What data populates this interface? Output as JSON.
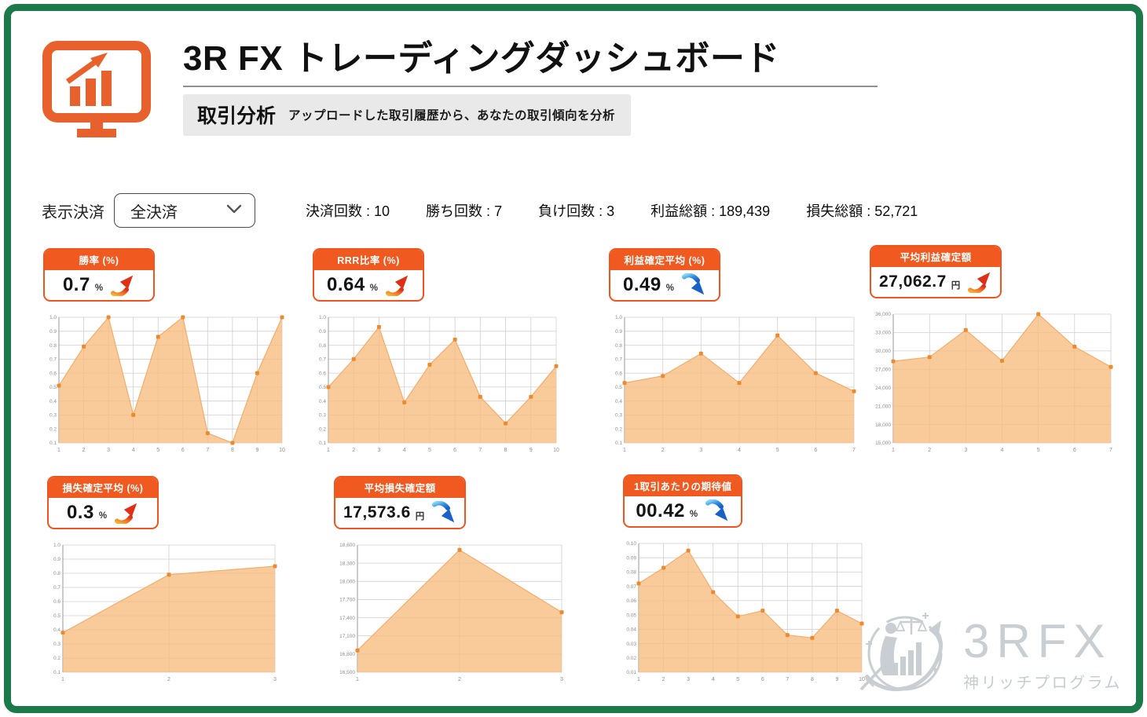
{
  "header": {
    "title": "3R FX トレーディングダッシュボード",
    "section_label": "取引分析",
    "section_desc": "アップロードした取引履歴から、あなたの取引傾向を分析"
  },
  "filter": {
    "label": "表示決済",
    "selected": "全決済"
  },
  "stats_separator": " : ",
  "stats": [
    {
      "label": "決済回数",
      "value": "10"
    },
    {
      "label": "勝ち回数",
      "value": "7"
    },
    {
      "label": "負け回数",
      "value": "3"
    },
    {
      "label": "利益総額",
      "value": "189,439"
    },
    {
      "label": "損失総額",
      "value": "52,721"
    }
  ],
  "colors": {
    "frame_green": "#1b7a4a",
    "accent_orange": "#f0591f",
    "area_fill": "#f7bd81",
    "marker_orange": "#ec8a30",
    "arrow_up_gradient": [
      "#f9b233",
      "#e02f17"
    ],
    "arrow_down_gradient": [
      "#86d7f3",
      "#1861c9"
    ],
    "watermark_gray": "#c9ced3"
  },
  "watermark": {
    "brand": "3RFX",
    "subtitle": "神リッチプログラム"
  },
  "chart_data": [
    {
      "type": "area",
      "kpi": {
        "label": "勝率 (%)",
        "value": "0.7",
        "unit": "%",
        "trend": "up"
      },
      "categories": [
        "1",
        "2",
        "3",
        "4",
        "5",
        "6",
        "7",
        "8",
        "9",
        "10"
      ],
      "values": [
        0.51,
        0.79,
        1.0,
        0.3,
        0.86,
        1.0,
        0.17,
        0.1,
        0.6,
        1.0
      ],
      "ylim": [
        0.1,
        1.0
      ],
      "yticks": [
        1.0,
        0.9,
        0.8,
        0.7,
        0.6,
        0.5,
        0.4,
        0.3,
        0.2,
        0.1
      ],
      "ytick_labels": [
        "1.0",
        "0.9",
        "0.8",
        "0.7",
        "0.6",
        "0.5",
        "0.4",
        "0.3",
        "0.2",
        "0.1"
      ],
      "xlabel": "",
      "ylabel": "",
      "grid": true
    },
    {
      "type": "area",
      "kpi": {
        "label": "RRR比率 (%)",
        "value": "0.64",
        "unit": "%",
        "trend": "up"
      },
      "categories": [
        "1",
        "2",
        "3",
        "4",
        "5",
        "6",
        "7",
        "8",
        "9",
        "10"
      ],
      "values": [
        0.5,
        0.7,
        0.93,
        0.39,
        0.66,
        0.84,
        0.43,
        0.24,
        0.43,
        0.65
      ],
      "ylim": [
        0.1,
        1.0
      ],
      "yticks": [
        1.0,
        0.9,
        0.8,
        0.7,
        0.6,
        0.5,
        0.4,
        0.3,
        0.2,
        0.1
      ],
      "ytick_labels": [
        "1.0",
        "0.9",
        "0.8",
        "0.7",
        "0.6",
        "0.5",
        "0.4",
        "0.3",
        "0.2",
        "0.1"
      ],
      "xlabel": "",
      "ylabel": "",
      "grid": true
    },
    {
      "type": "area",
      "kpi": {
        "label": "利益確定平均 (%)",
        "value": "0.49",
        "unit": "%",
        "trend": "down"
      },
      "categories": [
        "1",
        "2",
        "3",
        "4",
        "5",
        "6",
        "7"
      ],
      "values": [
        0.53,
        0.58,
        0.74,
        0.53,
        0.87,
        0.6,
        0.47
      ],
      "ylim": [
        0.1,
        1.0
      ],
      "yticks": [
        1.0,
        0.9,
        0.8,
        0.7,
        0.6,
        0.5,
        0.4,
        0.3,
        0.2,
        0.1
      ],
      "ytick_labels": [
        "1.0",
        "0.9",
        "0.8",
        "0.7",
        "0.6",
        "0.5",
        "0.4",
        "0.3",
        "0.2",
        "0.1"
      ],
      "xlabel": "",
      "ylabel": "",
      "grid": true
    },
    {
      "type": "area",
      "kpi": {
        "label": "平均利益確定額",
        "value": "27,062.7",
        "unit": "円",
        "trend": "up"
      },
      "categories": [
        "1",
        "2",
        "3",
        "4",
        "5",
        "6",
        "7"
      ],
      "values": [
        28300,
        29000,
        33400,
        28400,
        36000,
        30700,
        27400
      ],
      "ylim": [
        15000,
        36000
      ],
      "yticks": [
        36000,
        33000,
        30000,
        27000,
        24000,
        21000,
        18000,
        15000
      ],
      "ytick_labels": [
        "36,000",
        "33,000",
        "30,000",
        "27,000",
        "24,000",
        "21,000",
        "18,000",
        "15,000"
      ],
      "xlabel": "",
      "ylabel": "",
      "grid": true
    },
    {
      "type": "area",
      "kpi": {
        "label": "損失確定平均 (%)",
        "value": "0.3",
        "unit": "%",
        "trend": "up"
      },
      "categories": [
        "1",
        "2",
        "3"
      ],
      "values": [
        0.38,
        0.79,
        0.85
      ],
      "ylim": [
        0.1,
        1.0
      ],
      "yticks": [
        1.0,
        0.9,
        0.8,
        0.7,
        0.6,
        0.5,
        0.4,
        0.3,
        0.2,
        0.1
      ],
      "ytick_labels": [
        "1.0",
        "0.9",
        "0.8",
        "0.7",
        "0.6",
        "0.5",
        "0.4",
        "0.3",
        "0.2",
        "0.1"
      ],
      "xlabel": "",
      "ylabel": "",
      "grid": true
    },
    {
      "type": "area",
      "kpi": {
        "label": "平均損失確定額",
        "value": "17,573.6",
        "unit": "円",
        "trend": "down"
      },
      "categories": [
        "1",
        "2",
        "3"
      ],
      "values": [
        16860,
        18520,
        17490
      ],
      "ylim": [
        16500,
        18600
      ],
      "yticks": [
        18600,
        18300,
        18000,
        17700,
        17400,
        17100,
        16800,
        16500
      ],
      "ytick_labels": [
        "18,600",
        "18,300",
        "18,000",
        "17,700",
        "17,400",
        "17,100",
        "16,800",
        "16,500"
      ],
      "xlabel": "",
      "ylabel": "",
      "grid": true
    },
    {
      "type": "area",
      "kpi": {
        "label": "1取引あたりの期待値",
        "value": "00.42",
        "unit": "%",
        "trend": "down"
      },
      "categories": [
        "1",
        "2",
        "3",
        "4",
        "5",
        "6",
        "7",
        "8",
        "9",
        "10"
      ],
      "values": [
        0.072,
        0.083,
        0.095,
        0.066,
        0.049,
        0.053,
        0.036,
        0.034,
        0.053,
        0.044
      ],
      "ylim": [
        0.01,
        0.1
      ],
      "yticks": [
        0.1,
        0.09,
        0.08,
        0.07,
        0.06,
        0.05,
        0.04,
        0.03,
        0.02,
        0.01
      ],
      "ytick_labels": [
        "0.10",
        "0.09",
        "0.08",
        "0.07",
        "0.06",
        "0.05",
        "0.04",
        "0.03",
        "0.02",
        "0.01"
      ],
      "xlabel": "",
      "ylabel": "",
      "grid": true
    }
  ]
}
